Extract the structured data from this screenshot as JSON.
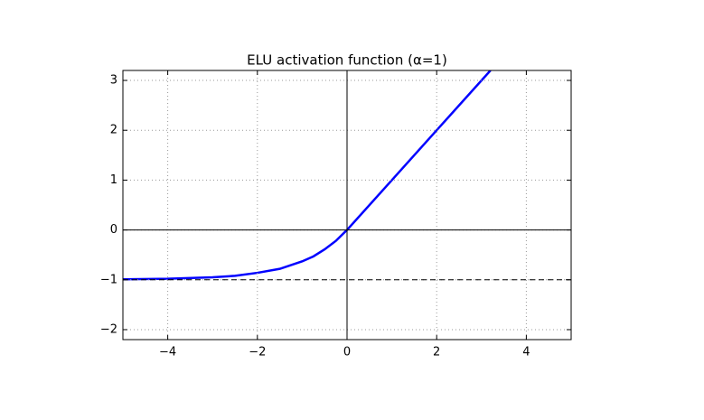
{
  "chart_data": {
    "type": "line",
    "title": "ELU activation function (α=1)",
    "x": [
      -5,
      -4,
      -3,
      -2.5,
      -2,
      -1.5,
      -1,
      -0.75,
      -0.5,
      -0.25,
      0,
      1,
      2,
      3.2
    ],
    "series": [
      {
        "color": "#0000ff",
        "values": [
          -0.99,
          -0.98,
          -0.95,
          -0.92,
          -0.86,
          -0.78,
          -0.63,
          -0.53,
          -0.39,
          -0.22,
          0,
          1,
          2,
          3.2
        ]
      }
    ],
    "xlim": [
      -5,
      5
    ],
    "ylim": [
      -2.2,
      3.2
    ],
    "xticks": [
      {
        "value": -4,
        "label": "−4"
      },
      {
        "value": -2,
        "label": "−2"
      },
      0,
      2,
      4
    ],
    "yticks": [
      {
        "value": -2,
        "label": "−2"
      },
      {
        "value": -1,
        "label": "−1"
      },
      0,
      1,
      2,
      3
    ],
    "grid": true,
    "hlines": [
      {
        "y": 0,
        "style": "solid"
      },
      {
        "y": -1,
        "style": "dashed"
      }
    ],
    "vlines": [
      {
        "x": 0,
        "style": "solid"
      }
    ]
  }
}
